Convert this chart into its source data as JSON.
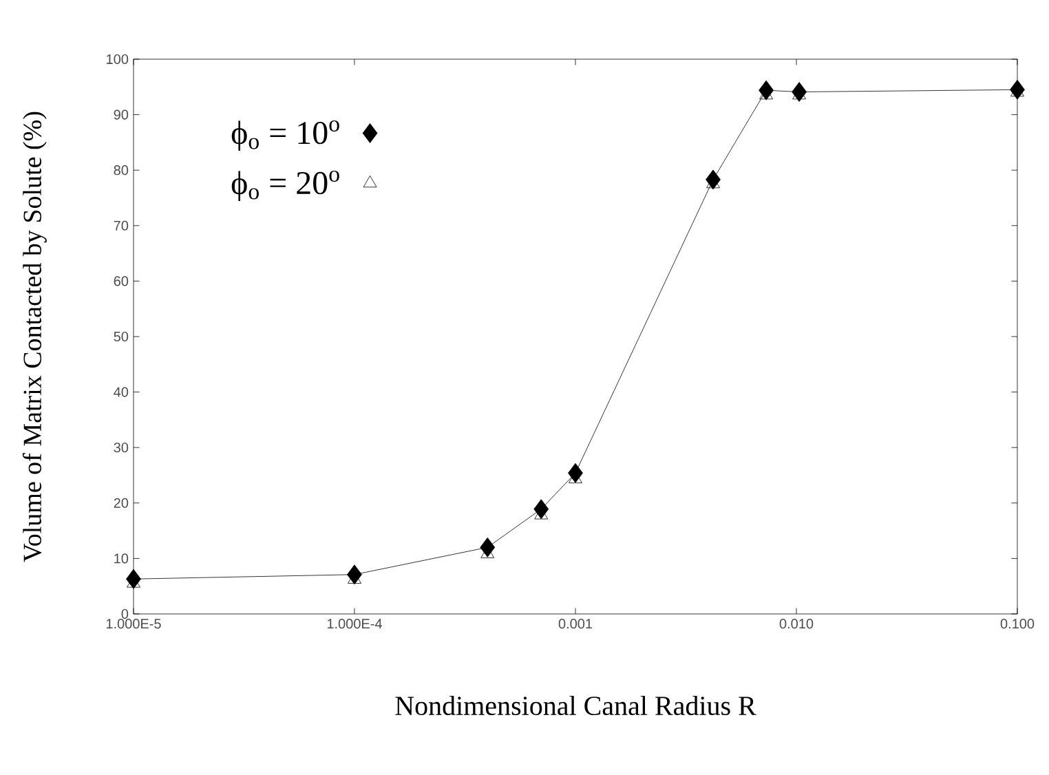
{
  "chart_data": {
    "type": "line",
    "xlabel": "Nondimensional Canal Radius  R",
    "ylabel": "Volume of Matrix Contacted by Solute (%)",
    "log": "x",
    "xlim": [
      1e-05,
      0.1
    ],
    "ylim": [
      0,
      100
    ],
    "xticks": [
      {
        "value": 1e-05,
        "label": "1.000E-5"
      },
      {
        "value": 0.0001,
        "label": "1.000E-4"
      },
      {
        "value": 0.001,
        "label": "0.001"
      },
      {
        "value": 0.01,
        "label": "0.010"
      },
      {
        "value": 0.1,
        "label": "0.100"
      }
    ],
    "yticks": [
      0,
      10,
      20,
      30,
      40,
      50,
      60,
      70,
      80,
      90,
      100
    ],
    "grid": false,
    "legend": "top left",
    "series": [
      {
        "name": "ϕ$_{o}$ = 10$^{o}$",
        "type": "line",
        "marker": "diamond",
        "color": "#000000",
        "x": [
          1e-05,
          0.0001,
          0.0004,
          0.0007,
          0.001,
          0.0042,
          0.0073,
          0.0103,
          0.1
        ],
        "values": [
          6.3,
          7.1,
          12,
          18.9,
          25.4,
          78.3,
          94.4,
          94.1,
          94.5
        ]
      },
      {
        "name": "ϕ$_{o}$ = 20$^{o}$",
        "type": "scatter",
        "marker": "triangle",
        "color": "#000000",
        "x": [
          1e-05,
          0.0001,
          0.0004,
          0.0007,
          0.001,
          0.0042,
          0.0073,
          0.0103,
          0.1
        ],
        "values": [
          5.5,
          6.2,
          10.8,
          17.8,
          24.3,
          77.5,
          93.5,
          93.5,
          94
        ]
      }
    ]
  }
}
